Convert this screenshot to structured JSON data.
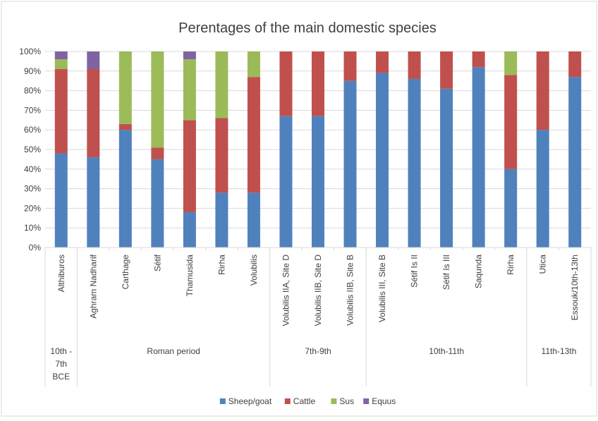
{
  "chart_data": {
    "type": "bar",
    "stacked": true,
    "title": "Perentages of the main domestic species",
    "xlabel": "",
    "ylabel": "",
    "ylim": [
      0,
      100
    ],
    "y_ticks": [
      "0%",
      "10%",
      "20%",
      "30%",
      "40%",
      "50%",
      "60%",
      "70%",
      "80%",
      "90%",
      "100%"
    ],
    "grid": true,
    "legend_position": "bottom",
    "categories": [
      "Althiburos",
      "Aghram Nadharif",
      "Carthage",
      "Sétif",
      "Thamusida",
      "Rirha",
      "Volubilis",
      "Volubilis IIA, Site D",
      "Volubilis IIB, Site D",
      "Volubilis IIB, Site B",
      "Volubilis III, Site B",
      "Sétif Is II",
      "Sétif Is III",
      "Saqunda",
      "Rirha",
      "Utica",
      "Essouk/10th-13th"
    ],
    "periods": [
      {
        "label": "10th - 7th BCE",
        "lines": [
          "10th -",
          "7th",
          "BCE"
        ],
        "start": 0,
        "end": 0
      },
      {
        "label": "Roman period",
        "lines": [
          "Roman period"
        ],
        "start": 1,
        "end": 6
      },
      {
        "label": "7th-9th",
        "lines": [
          "7th-9th"
        ],
        "start": 7,
        "end": 9
      },
      {
        "label": "10th-11th",
        "lines": [
          "10th-11th"
        ],
        "start": 10,
        "end": 14
      },
      {
        "label": "11th-13th",
        "lines": [
          "11th-13th"
        ],
        "start": 15,
        "end": 16
      }
    ],
    "series": [
      {
        "name": "Sheep/goat",
        "color": "#4f81bd",
        "values": [
          48,
          46,
          60,
          45,
          18,
          28,
          28,
          67,
          67,
          85,
          89,
          86,
          81,
          92,
          40,
          60,
          87
        ]
      },
      {
        "name": "Cattle",
        "color": "#c0504d",
        "values": [
          43,
          45,
          3,
          6,
          47,
          38,
          59,
          33,
          33,
          15,
          11,
          14,
          19,
          8,
          48,
          40,
          13
        ]
      },
      {
        "name": "Sus",
        "color": "#9bbb59",
        "values": [
          5,
          0,
          37,
          49,
          31,
          34,
          13,
          0,
          0,
          0,
          0,
          0,
          0,
          0,
          12,
          0,
          0
        ]
      },
      {
        "name": "Equus",
        "color": "#8064a2",
        "values": [
          4,
          9,
          0,
          0,
          4,
          0,
          0,
          0,
          0,
          0,
          0,
          0,
          0,
          0,
          0,
          0,
          0
        ]
      }
    ]
  }
}
